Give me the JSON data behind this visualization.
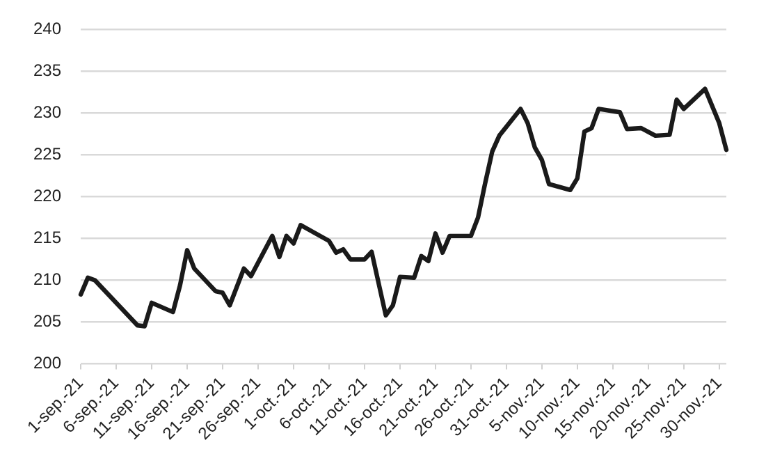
{
  "chart_data": {
    "type": "line",
    "x": [
      "--09-01",
      "--09-02",
      "--09-03",
      "--09-09",
      "--09-10",
      "--09-11",
      "--09-14",
      "--09-15",
      "--09-16",
      "--09-17",
      "--09-20",
      "--09-21",
      "--09-22",
      "--09-24",
      "--09-25",
      "--09-28",
      "--09-29",
      "--09-30",
      "--10-01",
      "--10-02",
      "--10-06",
      "--10-07",
      "--10-08",
      "--10-09",
      "--10-11",
      "--10-12",
      "--10-14",
      "--10-15",
      "--10-16",
      "--10-18",
      "--10-19",
      "--10-20",
      "--10-21",
      "--10-22",
      "--10-23",
      "--10-26",
      "--10-27",
      "--10-28",
      "--10-29",
      "--10-30",
      "--11-02",
      "--11-03",
      "--11-04",
      "--11-05",
      "--11-06",
      "--11-09",
      "--11-10",
      "--11-11",
      "--11-12",
      "--11-13",
      "--11-16",
      "--11-17",
      "--11-19",
      "--11-21",
      "--11-23",
      "--11-24",
      "--11-25",
      "--11-28",
      "--11-30",
      "--12-01"
    ],
    "series": [
      {
        "color": "#1a1a1a",
        "values": [
          208.3,
          210.3,
          210.0,
          204.6,
          204.5,
          207.3,
          206.2,
          209.4,
          213.6,
          211.4,
          208.7,
          208.5,
          207.0,
          211.4,
          210.5,
          215.3,
          212.8,
          215.3,
          214.4,
          216.6,
          214.7,
          213.3,
          213.7,
          212.5,
          212.5,
          213.4,
          205.8,
          207.0,
          210.4,
          210.3,
          212.9,
          212.3,
          215.6,
          213.3,
          215.3,
          215.3,
          217.5,
          221.6,
          225.4,
          227.3,
          230.5,
          228.8,
          225.9,
          224.4,
          221.5,
          220.8,
          222.2,
          227.8,
          228.2,
          230.5,
          230.1,
          228.1,
          228.2,
          227.3,
          227.4,
          231.6,
          230.5,
          232.9,
          228.8,
          225.6
        ]
      }
    ],
    "xlim": [
      "--09-01",
      "--12-01"
    ],
    "xticks": [
      {
        "value": "--09-01",
        "label": "1-sep.-21"
      },
      {
        "value": "--09-06",
        "label": "6-sep.-21"
      },
      {
        "value": "--09-11",
        "label": "11-sep.-21"
      },
      {
        "value": "--09-16",
        "label": "16-sep.-21"
      },
      {
        "value": "--09-21",
        "label": "21-sep.-21"
      },
      {
        "value": "--09-26",
        "label": "26-sep.-21"
      },
      {
        "value": "--10-01",
        "label": "1-oct.-21"
      },
      {
        "value": "--10-06",
        "label": "6-oct.-21"
      },
      {
        "value": "--10-11",
        "label": "11-oct.-21"
      },
      {
        "value": "--10-16",
        "label": "16-oct.-21"
      },
      {
        "value": "--10-21",
        "label": "21-oct.-21"
      },
      {
        "value": "--10-26",
        "label": "26-oct.-21"
      },
      {
        "value": "--10-31",
        "label": "31-oct.-21"
      },
      {
        "value": "--11-05",
        "label": "5-nov.-21"
      },
      {
        "value": "--11-10",
        "label": "10-nov.-21"
      },
      {
        "value": "--11-15",
        "label": "15-nov.-21"
      },
      {
        "value": "--11-20",
        "label": "20-nov.-21"
      },
      {
        "value": "--11-25",
        "label": "25-nov.-21"
      },
      {
        "value": "--11-30",
        "label": "30-nov.-21"
      }
    ],
    "ylim": [
      200,
      240
    ],
    "yticks": [
      200,
      205,
      210,
      215,
      220,
      225,
      230,
      235,
      240
    ],
    "grid": "y",
    "legend": false,
    "marker": "none",
    "line_style": "solid"
  }
}
